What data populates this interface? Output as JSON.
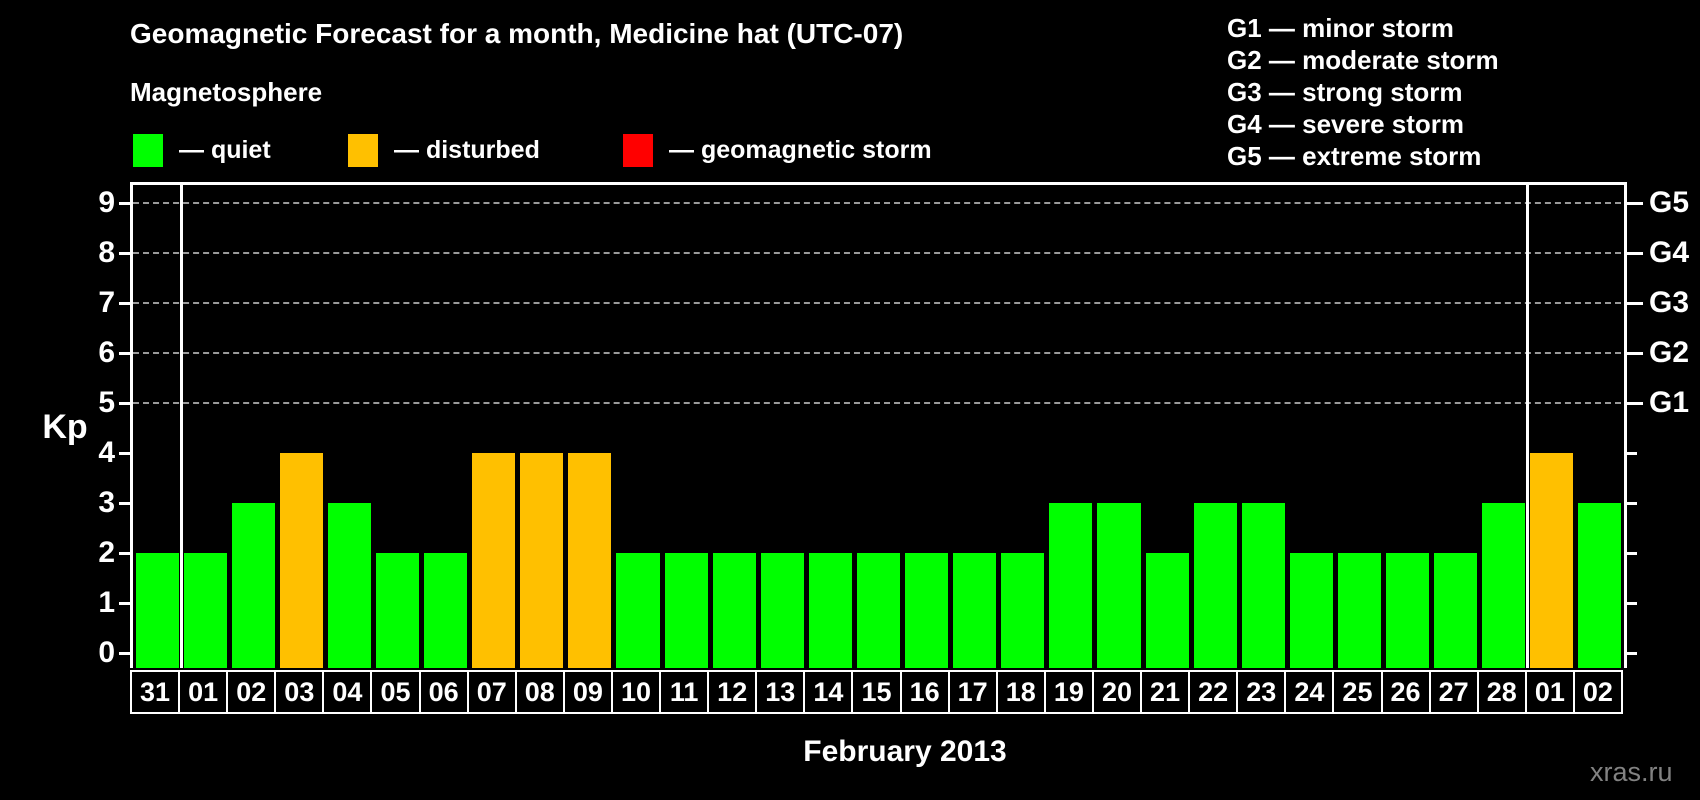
{
  "header": {
    "title": "Geomagnetic Forecast for a month, Medicine hat (UTC-07)",
    "legend_heading": "Magnetosphere",
    "legend_items": [
      {
        "label": "— quiet",
        "state": "quiet",
        "color": "#00ff00"
      },
      {
        "label": "— disturbed",
        "state": "disturbed",
        "color": "#ffc000"
      },
      {
        "label": "— geomagnetic storm",
        "state": "storm",
        "color": "#ff0000"
      }
    ],
    "storm_scale_legend": [
      "G1 — minor storm",
      "G2 — moderate storm",
      "G3 — strong storm",
      "G4 — severe storm",
      "G5 — extreme storm"
    ]
  },
  "watermark": "xras.ru",
  "chart_data": {
    "type": "bar",
    "title": "Geomagnetic Forecast for a month, Medicine hat (UTC-07)",
    "xlabel": "February 2013",
    "ylabel": "Kp",
    "ylim": [
      0,
      9
    ],
    "y_ticks": [
      0,
      1,
      2,
      3,
      4,
      5,
      6,
      7,
      8,
      9
    ],
    "gridline_levels": [
      5,
      6,
      7,
      8,
      9
    ],
    "right_axis": {
      "labels": [
        "G1",
        "G2",
        "G3",
        "G4",
        "G5"
      ],
      "levels": [
        5,
        6,
        7,
        8,
        9
      ]
    },
    "categories": [
      "31",
      "01",
      "02",
      "03",
      "04",
      "05",
      "06",
      "07",
      "08",
      "09",
      "10",
      "11",
      "12",
      "13",
      "14",
      "15",
      "16",
      "17",
      "18",
      "19",
      "20",
      "21",
      "22",
      "23",
      "24",
      "25",
      "26",
      "27",
      "28",
      "01",
      "02"
    ],
    "values": [
      2,
      2,
      3,
      4,
      3,
      2,
      2,
      4,
      4,
      4,
      2,
      2,
      2,
      2,
      2,
      2,
      2,
      2,
      2,
      3,
      3,
      2,
      3,
      3,
      2,
      2,
      2,
      2,
      3,
      4,
      3
    ],
    "states": [
      "quiet",
      "quiet",
      "quiet",
      "disturbed",
      "quiet",
      "quiet",
      "quiet",
      "disturbed",
      "disturbed",
      "disturbed",
      "quiet",
      "quiet",
      "quiet",
      "quiet",
      "quiet",
      "quiet",
      "quiet",
      "quiet",
      "quiet",
      "quiet",
      "quiet",
      "quiet",
      "quiet",
      "quiet",
      "quiet",
      "quiet",
      "quiet",
      "quiet",
      "quiet",
      "disturbed",
      "quiet"
    ],
    "state_colors": {
      "quiet": "#00ff00",
      "disturbed": "#ffc000",
      "storm": "#ff0000"
    },
    "month_separators_after_index": [
      0,
      28
    ],
    "legend_position": "top-left",
    "grid": "horizontal dashed lines at storm levels only"
  }
}
